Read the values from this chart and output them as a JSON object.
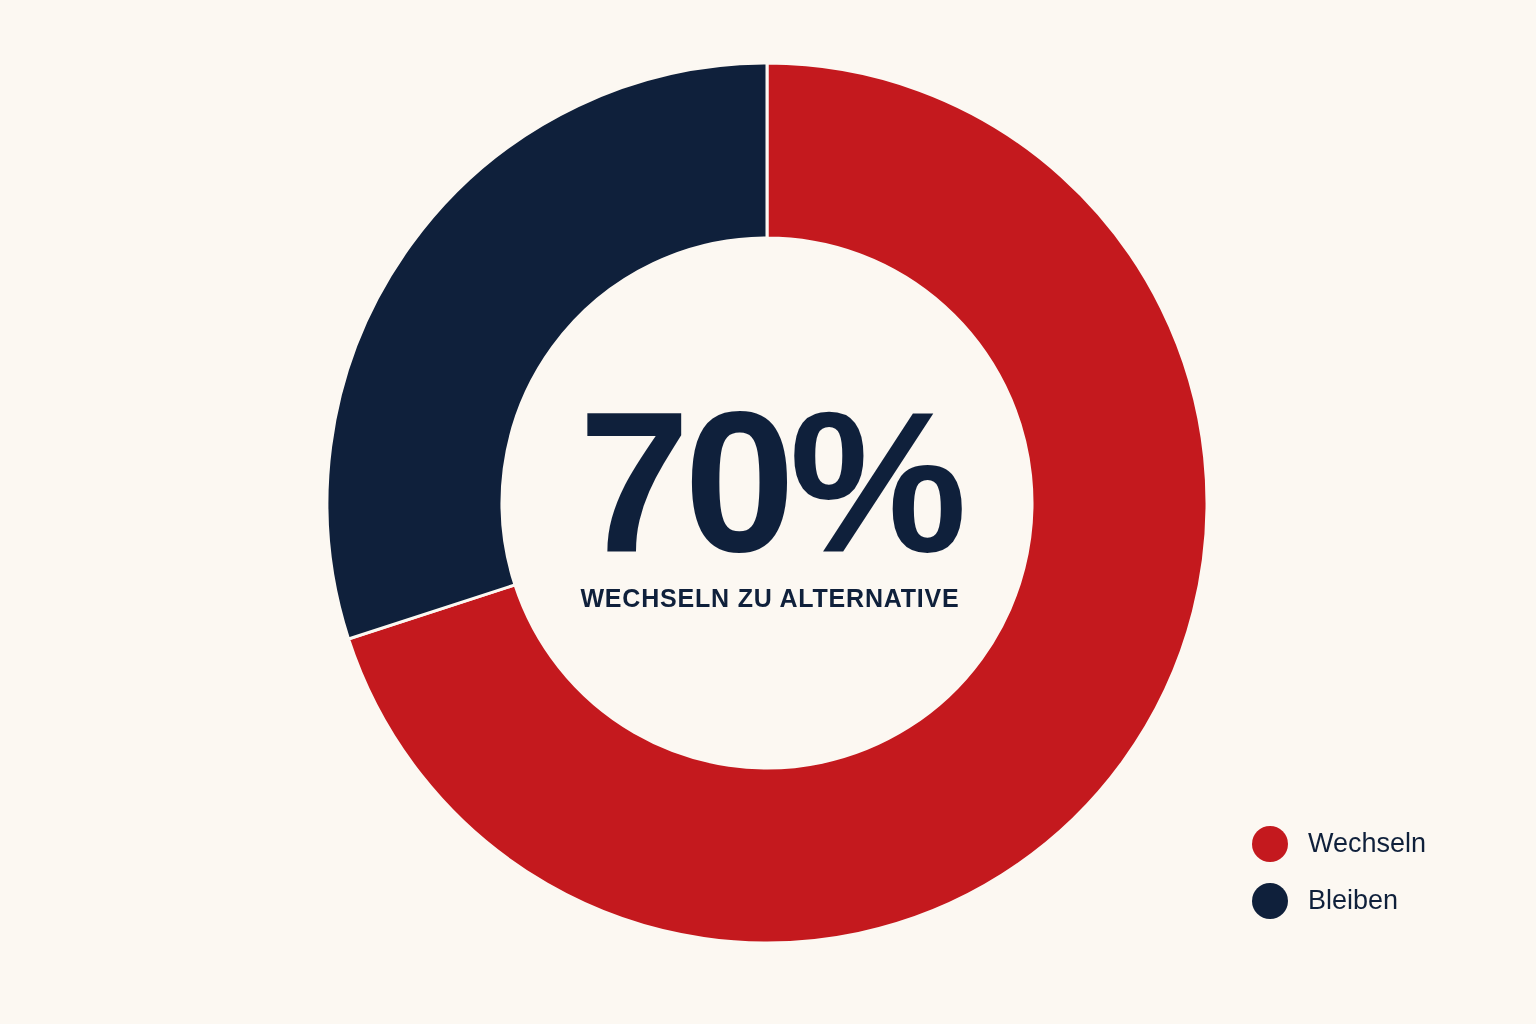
{
  "chart_data": {
    "type": "donut",
    "categories": [
      "Wechseln",
      "Bleiben"
    ],
    "values": [
      70,
      30
    ],
    "colors": [
      "#c4191e",
      "#0f203b"
    ],
    "legend": "bottom right",
    "annotations": [
      "70%",
      "WECHSELN ZU ALTERNATIVE"
    ]
  }
}
